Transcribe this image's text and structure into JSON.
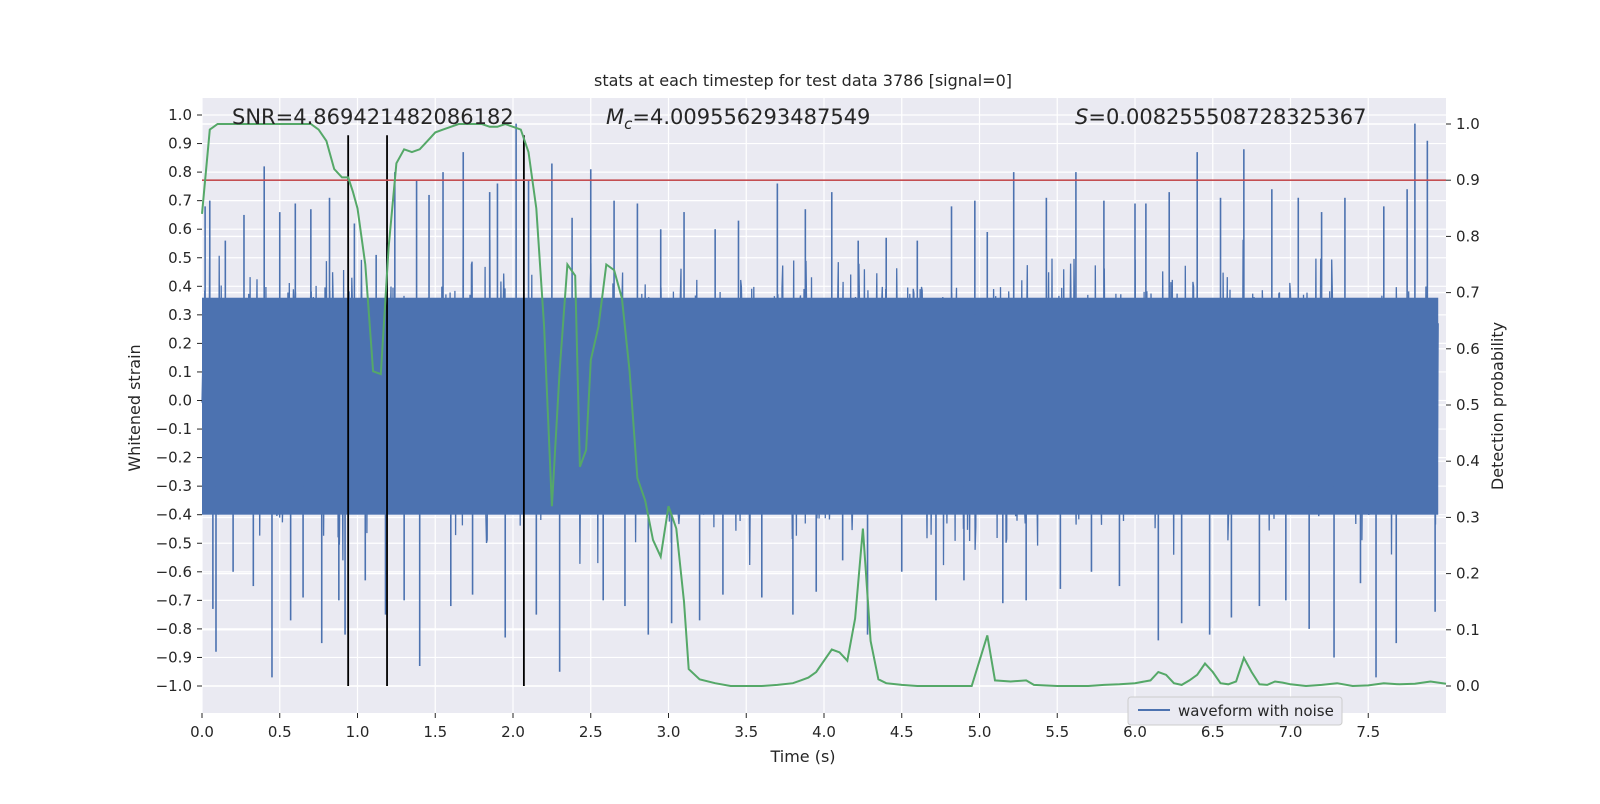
{
  "chart_data": {
    "type": "line",
    "title": "stats at each timestep for test data 3786 [signal=0]",
    "xlabel": "Time (s)",
    "ylabel_left": "Whitened strain",
    "ylabel_right": "Detection probability",
    "xlim": [
      0.0,
      8.0
    ],
    "ylim_left": [
      -1.1,
      1.1
    ],
    "ylim_right": [
      -0.05,
      1.04
    ],
    "x_ticks": [
      "0.0",
      "0.5",
      "1.0",
      "1.5",
      "2.0",
      "2.5",
      "3.0",
      "3.5",
      "4.0",
      "4.5",
      "5.0",
      "5.5",
      "6.0",
      "6.5",
      "7.0",
      "7.5"
    ],
    "y_left_ticks": [
      "1.0",
      "0.9",
      "0.8",
      "0.7",
      "0.6",
      "0.5",
      "0.4",
      "0.3",
      "0.2",
      "0.1",
      "0.0",
      "-0.1",
      "-0.2",
      "-0.3",
      "-0.4",
      "-0.5",
      "-0.6",
      "-0.7",
      "-0.8",
      "-0.9",
      "-1.0"
    ],
    "y_left_tick_values": [
      1.0,
      0.9,
      0.8,
      0.7,
      0.6,
      0.5,
      0.4,
      0.3,
      0.2,
      0.1,
      0.0,
      -0.1,
      -0.2,
      -0.3,
      -0.4,
      -0.5,
      -0.6,
      -0.7,
      -0.8,
      -0.9,
      -1.0
    ],
    "y_right_ticks": [
      "1.0",
      "0.9",
      "0.8",
      "0.7",
      "0.6",
      "0.5",
      "0.4",
      "0.3",
      "0.2",
      "0.1",
      "0.0"
    ],
    "y_right_tick_values": [
      1.0,
      0.9,
      0.8,
      0.7,
      0.6,
      0.5,
      0.4,
      0.3,
      0.2,
      0.1,
      0.0
    ],
    "annotations": {
      "snr": "SNR=4.869421482086182",
      "mc": "M_c=4.009556293487549",
      "s": "S=0.008255508728325367"
    },
    "threshold": {
      "axis": "right",
      "value": 0.9,
      "color": "#c44e52"
    },
    "vertical_markers": {
      "x": [
        0.94,
        1.19,
        2.07
      ],
      "ymin": -1.0,
      "ymax": 0.98,
      "color": "#000000"
    },
    "legend": {
      "location": "lower right",
      "entries": [
        "waveform with noise"
      ]
    },
    "grid": true,
    "series": [
      {
        "name": "waveform with noise",
        "axis": "left",
        "color": "#4c72b0",
        "description_band": "dense noise between about -0.45 and 0.45 with spikes up to 0.97 and down to -0.97",
        "spikes": [
          [
            0.02,
            0.68
          ],
          [
            0.05,
            0.7
          ],
          [
            0.07,
            -0.73
          ],
          [
            0.09,
            -0.88
          ],
          [
            0.15,
            0.56
          ],
          [
            0.2,
            -0.6
          ],
          [
            0.27,
            0.65
          ],
          [
            0.33,
            -0.65
          ],
          [
            0.4,
            0.82
          ],
          [
            0.45,
            -0.97
          ],
          [
            0.5,
            0.66
          ],
          [
            0.57,
            -0.77
          ],
          [
            0.6,
            0.69
          ],
          [
            0.65,
            -0.69
          ],
          [
            0.7,
            0.67
          ],
          [
            0.77,
            -0.85
          ],
          [
            0.82,
            0.71
          ],
          [
            0.88,
            -0.7
          ],
          [
            0.92,
            -0.82
          ],
          [
            0.98,
            0.62
          ],
          [
            1.05,
            -0.63
          ],
          [
            1.12,
            0.51
          ],
          [
            1.18,
            -0.75
          ],
          [
            1.24,
            0.8
          ],
          [
            1.3,
            -0.7
          ],
          [
            1.38,
            0.77
          ],
          [
            1.4,
            -0.93
          ],
          [
            1.46,
            0.72
          ],
          [
            1.55,
            0.8
          ],
          [
            1.6,
            -0.72
          ],
          [
            1.68,
            0.87
          ],
          [
            1.74,
            -0.68
          ],
          [
            1.85,
            0.73
          ],
          [
            1.9,
            0.76
          ],
          [
            1.95,
            -0.83
          ],
          [
            2.02,
            0.97
          ],
          [
            2.1,
            0.77
          ],
          [
            2.15,
            -0.75
          ],
          [
            2.25,
            0.83
          ],
          [
            2.3,
            -0.95
          ],
          [
            2.38,
            0.64
          ],
          [
            2.5,
            0.81
          ],
          [
            2.58,
            -0.7
          ],
          [
            2.65,
            0.7
          ],
          [
            2.72,
            -0.72
          ],
          [
            2.8,
            0.69
          ],
          [
            2.87,
            -0.82
          ],
          [
            2.95,
            0.6
          ],
          [
            3.02,
            -0.78
          ],
          [
            3.1,
            0.66
          ],
          [
            3.2,
            -0.77
          ],
          [
            3.3,
            0.6
          ],
          [
            3.35,
            -0.68
          ],
          [
            3.45,
            0.63
          ],
          [
            3.6,
            -0.69
          ],
          [
            3.7,
            0.76
          ],
          [
            3.8,
            -0.75
          ],
          [
            3.88,
            0.67
          ],
          [
            3.95,
            -0.67
          ],
          [
            4.05,
            0.73
          ],
          [
            4.12,
            -0.56
          ],
          [
            4.22,
            0.56
          ],
          [
            4.28,
            -0.82
          ],
          [
            4.4,
            0.57
          ],
          [
            4.5,
            -0.6
          ],
          [
            4.6,
            0.56
          ],
          [
            4.72,
            -0.7
          ],
          [
            4.82,
            0.68
          ],
          [
            4.9,
            -0.63
          ],
          [
            4.97,
            0.7
          ],
          [
            5.05,
            0.59
          ],
          [
            5.15,
            -0.71
          ],
          [
            5.22,
            0.8
          ],
          [
            5.3,
            -0.7
          ],
          [
            5.43,
            0.71
          ],
          [
            5.52,
            -0.66
          ],
          [
            5.62,
            0.8
          ],
          [
            5.72,
            -0.6
          ],
          [
            5.8,
            0.7
          ],
          [
            5.9,
            -0.65
          ],
          [
            6.0,
            0.69
          ],
          [
            6.07,
            0.69
          ],
          [
            6.15,
            -0.84
          ],
          [
            6.22,
            0.73
          ],
          [
            6.3,
            -0.78
          ],
          [
            6.4,
            0.87
          ],
          [
            6.48,
            -0.82
          ],
          [
            6.55,
            0.71
          ],
          [
            6.62,
            -0.76
          ],
          [
            6.7,
            0.88
          ],
          [
            6.8,
            -0.72
          ],
          [
            6.88,
            0.74
          ],
          [
            6.97,
            -0.7
          ],
          [
            7.05,
            0.71
          ],
          [
            7.12,
            -0.8
          ],
          [
            7.2,
            0.66
          ],
          [
            7.28,
            -0.9
          ],
          [
            7.35,
            0.71
          ],
          [
            7.45,
            -0.64
          ],
          [
            7.55,
            -0.97
          ],
          [
            7.6,
            0.68
          ],
          [
            7.68,
            -0.85
          ],
          [
            7.75,
            0.74
          ],
          [
            7.8,
            0.97
          ],
          [
            7.88,
            0.91
          ],
          [
            7.93,
            -0.74
          ]
        ]
      },
      {
        "name": "",
        "axis": "right",
        "color": "#55a868",
        "points": [
          [
            0.0,
            0.84
          ],
          [
            0.05,
            0.99
          ],
          [
            0.1,
            1.0
          ],
          [
            0.2,
            1.0
          ],
          [
            0.3,
            1.0
          ],
          [
            0.4,
            1.0
          ],
          [
            0.5,
            1.0
          ],
          [
            0.6,
            1.0
          ],
          [
            0.7,
            1.0
          ],
          [
            0.75,
            0.99
          ],
          [
            0.8,
            0.97
          ],
          [
            0.82,
            0.95
          ],
          [
            0.85,
            0.92
          ],
          [
            0.9,
            0.905
          ],
          [
            0.94,
            0.905
          ],
          [
            0.97,
            0.88
          ],
          [
            1.0,
            0.85
          ],
          [
            1.05,
            0.75
          ],
          [
            1.1,
            0.56
          ],
          [
            1.15,
            0.555
          ],
          [
            1.2,
            0.78
          ],
          [
            1.25,
            0.93
          ],
          [
            1.3,
            0.955
          ],
          [
            1.35,
            0.95
          ],
          [
            1.4,
            0.955
          ],
          [
            1.45,
            0.97
          ],
          [
            1.5,
            0.985
          ],
          [
            1.55,
            0.99
          ],
          [
            1.6,
            0.995
          ],
          [
            1.65,
            1.0
          ],
          [
            1.7,
            1.0
          ],
          [
            1.75,
            1.0
          ],
          [
            1.8,
            1.0
          ],
          [
            1.85,
            0.995
          ],
          [
            1.9,
            0.995
          ],
          [
            1.95,
            1.0
          ],
          [
            2.0,
            0.995
          ],
          [
            2.05,
            0.99
          ],
          [
            2.1,
            0.95
          ],
          [
            2.15,
            0.85
          ],
          [
            2.2,
            0.64
          ],
          [
            2.25,
            0.32
          ],
          [
            2.3,
            0.56
          ],
          [
            2.35,
            0.75
          ],
          [
            2.4,
            0.73
          ],
          [
            2.43,
            0.39
          ],
          [
            2.47,
            0.42
          ],
          [
            2.5,
            0.58
          ],
          [
            2.55,
            0.64
          ],
          [
            2.6,
            0.75
          ],
          [
            2.65,
            0.74
          ],
          [
            2.7,
            0.69
          ],
          [
            2.75,
            0.56
          ],
          [
            2.8,
            0.37
          ],
          [
            2.85,
            0.33
          ],
          [
            2.9,
            0.26
          ],
          [
            2.95,
            0.23
          ],
          [
            3.0,
            0.32
          ],
          [
            3.05,
            0.28
          ],
          [
            3.1,
            0.15
          ],
          [
            3.13,
            0.03
          ],
          [
            3.2,
            0.012
          ],
          [
            3.3,
            0.005
          ],
          [
            3.4,
            0.0
          ],
          [
            3.5,
            0.0
          ],
          [
            3.6,
            0.0
          ],
          [
            3.7,
            0.002
          ],
          [
            3.8,
            0.005
          ],
          [
            3.85,
            0.01
          ],
          [
            3.9,
            0.015
          ],
          [
            3.95,
            0.025
          ],
          [
            4.0,
            0.045
          ],
          [
            4.05,
            0.065
          ],
          [
            4.1,
            0.06
          ],
          [
            4.15,
            0.045
          ],
          [
            4.2,
            0.12
          ],
          [
            4.25,
            0.28
          ],
          [
            4.3,
            0.08
          ],
          [
            4.35,
            0.012
          ],
          [
            4.4,
            0.005
          ],
          [
            4.5,
            0.002
          ],
          [
            4.6,
            0.0
          ],
          [
            4.7,
            0.0
          ],
          [
            4.8,
            0.0
          ],
          [
            4.95,
            0.0
          ],
          [
            5.05,
            0.09
          ],
          [
            5.1,
            0.01
          ],
          [
            5.2,
            0.008
          ],
          [
            5.3,
            0.01
          ],
          [
            5.35,
            0.002
          ],
          [
            5.5,
            0.0
          ],
          [
            5.6,
            0.0
          ],
          [
            5.7,
            0.0
          ],
          [
            5.8,
            0.002
          ],
          [
            5.9,
            0.003
          ],
          [
            6.0,
            0.005
          ],
          [
            6.1,
            0.01
          ],
          [
            6.15,
            0.025
          ],
          [
            6.2,
            0.02
          ],
          [
            6.25,
            0.005
          ],
          [
            6.3,
            0.002
          ],
          [
            6.35,
            0.01
          ],
          [
            6.4,
            0.02
          ],
          [
            6.45,
            0.04
          ],
          [
            6.5,
            0.025
          ],
          [
            6.55,
            0.005
          ],
          [
            6.6,
            0.003
          ],
          [
            6.65,
            0.008
          ],
          [
            6.7,
            0.05
          ],
          [
            6.75,
            0.025
          ],
          [
            6.8,
            0.003
          ],
          [
            6.85,
            0.002
          ],
          [
            6.9,
            0.008
          ],
          [
            6.95,
            0.006
          ],
          [
            7.0,
            0.003
          ],
          [
            7.1,
            0.0
          ],
          [
            7.2,
            0.002
          ],
          [
            7.3,
            0.005
          ],
          [
            7.4,
            0.0
          ],
          [
            7.5,
            0.001
          ],
          [
            7.6,
            0.005
          ],
          [
            7.7,
            0.003
          ],
          [
            7.8,
            0.004
          ],
          [
            7.9,
            0.008
          ],
          [
            8.0,
            0.004
          ]
        ]
      }
    ]
  }
}
